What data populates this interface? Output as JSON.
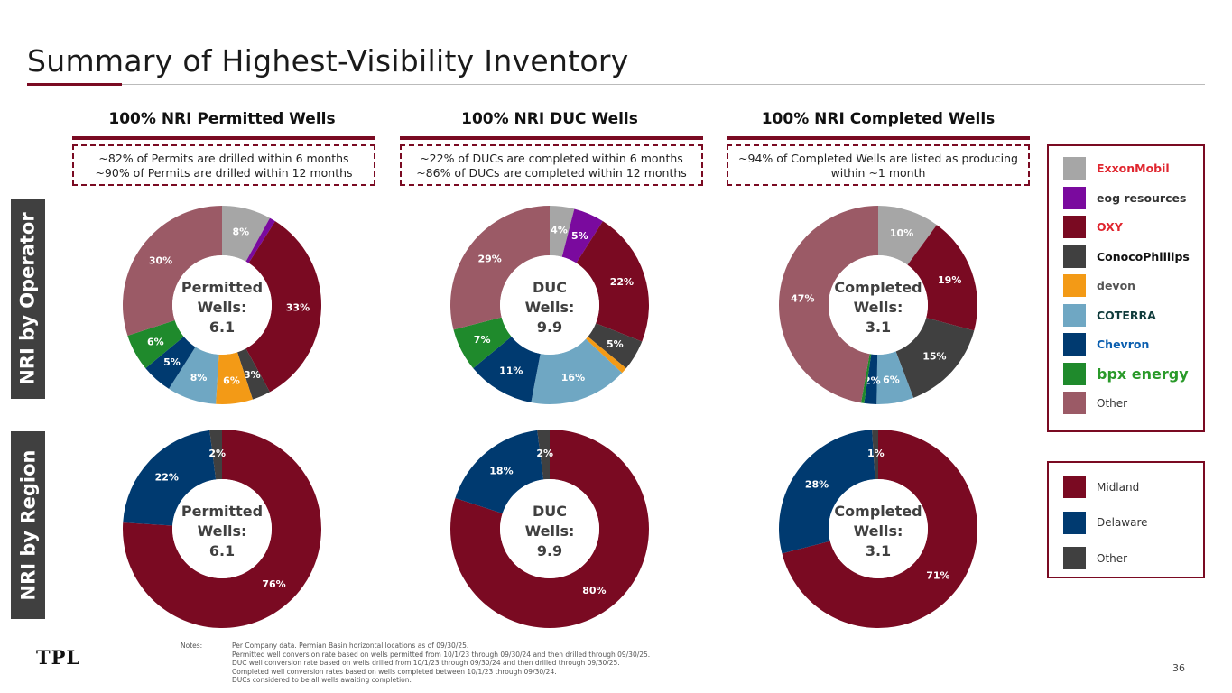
{
  "title": "Summary of Highest-Visibility Inventory",
  "side_labels": {
    "operator": "NRI by Operator",
    "region": "NRI by Region"
  },
  "columns": [
    {
      "header": "100% NRI Permitted Wells",
      "note_lines": [
        "~82% of Permits are drilled within 6 months",
        "~90% of Permits are drilled within 12 months"
      ]
    },
    {
      "header": "100% NRI DUC Wells",
      "note_lines": [
        "~22% of DUCs are completed within 6 months",
        "~86% of DUCs are completed within 12 months"
      ]
    },
    {
      "header": "100% NRI Completed Wells",
      "note_lines": [
        "~94% of Completed Wells are listed as producing",
        "within ~1 month"
      ]
    }
  ],
  "operator_legend": [
    {
      "name": "ExxonMobil",
      "color": "#a6a6a6",
      "text_color": "#e0262f"
    },
    {
      "name": "eog resources",
      "color": "#7a0a9e",
      "text_color": "#333"
    },
    {
      "name": "OXY",
      "color": "#7a0a22",
      "text_color": "#e0262f"
    },
    {
      "name": "ConocoPhillips",
      "color": "#404040",
      "text_color": "#111"
    },
    {
      "name": "devon",
      "color": "#f39a16",
      "text_color": "#555"
    },
    {
      "name": "COTERRA",
      "color": "#6fa7c3",
      "text_color": "#0f3b3b"
    },
    {
      "name": "Chevron",
      "color": "#003a70",
      "text_color": "#0b5fb0"
    },
    {
      "name": "bpx energy",
      "color": "#1f8a2c",
      "text_color": "#2a9a2a"
    },
    {
      "name": "Other",
      "color": "#9b5a66",
      "text_color": "#333"
    }
  ],
  "region_legend": [
    {
      "name": "Midland",
      "color": "#7a0a22"
    },
    {
      "name": "Delaware",
      "color": "#003a70"
    },
    {
      "name": "Other",
      "color": "#404040"
    }
  ],
  "chart_data": [
    {
      "type": "pie",
      "title": "NRI by Operator - Permitted",
      "center_label": [
        "Permitted",
        "Wells:",
        "6.1"
      ],
      "categories": [
        "ExxonMobil",
        "eog resources",
        "OXY",
        "ConocoPhillips",
        "devon",
        "COTERRA",
        "Chevron",
        "bpx energy",
        "Other"
      ],
      "values": [
        8,
        1,
        33,
        3,
        6,
        8,
        5,
        6,
        30
      ],
      "labels": [
        "8%",
        "",
        "33%",
        "3%",
        "6%",
        "8%",
        "5%",
        "6%",
        "30%"
      ]
    },
    {
      "type": "pie",
      "title": "NRI by Operator - DUC",
      "center_label": [
        "DUC",
        "Wells:",
        "9.9"
      ],
      "categories": [
        "ExxonMobil",
        "eog resources",
        "OXY",
        "ConocoPhillips",
        "devon",
        "COTERRA",
        "Chevron",
        "bpx energy",
        "Other"
      ],
      "values": [
        4,
        5,
        22,
        5,
        1,
        16,
        11,
        7,
        29
      ],
      "labels": [
        "4%",
        "5%",
        "22%",
        "5%",
        "",
        "16%",
        "11%",
        "7%",
        "29%"
      ]
    },
    {
      "type": "pie",
      "title": "NRI by Operator - Completed",
      "center_label": [
        "Completed",
        "Wells:",
        "3.1"
      ],
      "categories": [
        "ExxonMobil",
        "eog resources",
        "OXY",
        "ConocoPhillips",
        "devon",
        "COTERRA",
        "Chevron",
        "bpx energy",
        "Other"
      ],
      "values": [
        10,
        0,
        19,
        15,
        0,
        6,
        2,
        0.5,
        47
      ],
      "labels": [
        "10%",
        "",
        "19%",
        "15%",
        "",
        "6%",
        "2%",
        "",
        "47%"
      ]
    },
    {
      "type": "pie",
      "title": "NRI by Region - Permitted",
      "center_label": [
        "Permitted",
        "Wells:",
        "6.1"
      ],
      "categories": [
        "Midland",
        "Delaware",
        "Other"
      ],
      "values": [
        76,
        22,
        2
      ],
      "labels": [
        "76%",
        "22%",
        "2%"
      ]
    },
    {
      "type": "pie",
      "title": "NRI by Region - DUC",
      "center_label": [
        "DUC",
        "Wells:",
        "9.9"
      ],
      "categories": [
        "Midland",
        "Delaware",
        "Other"
      ],
      "values": [
        80,
        18,
        2
      ],
      "labels": [
        "80%",
        "18%",
        "2%"
      ]
    },
    {
      "type": "pie",
      "title": "NRI by Region - Completed",
      "center_label": [
        "Completed",
        "Wells:",
        "3.1"
      ],
      "categories": [
        "Midland",
        "Delaware",
        "Other"
      ],
      "values": [
        71,
        28,
        1
      ],
      "labels": [
        "71%",
        "28%",
        "1%"
      ]
    }
  ],
  "notes": {
    "label": "Notes:",
    "lines": [
      "Per Company data. Permian Basin horizontal locations as of 09/30/25.",
      "Permitted well conversion rate based on wells permitted from 10/1/23 through 09/30/24 and then drilled through 09/30/25.",
      "DUC well conversion rate based on wells drilled from 10/1/23 through 09/30/24 and then drilled through 09/30/25.",
      "Completed well conversion rates based on wells completed between 10/1/23 through 09/30/24.",
      "DUCs considered to be all wells awaiting completion."
    ]
  },
  "logo": "TPL",
  "page_number": "36"
}
